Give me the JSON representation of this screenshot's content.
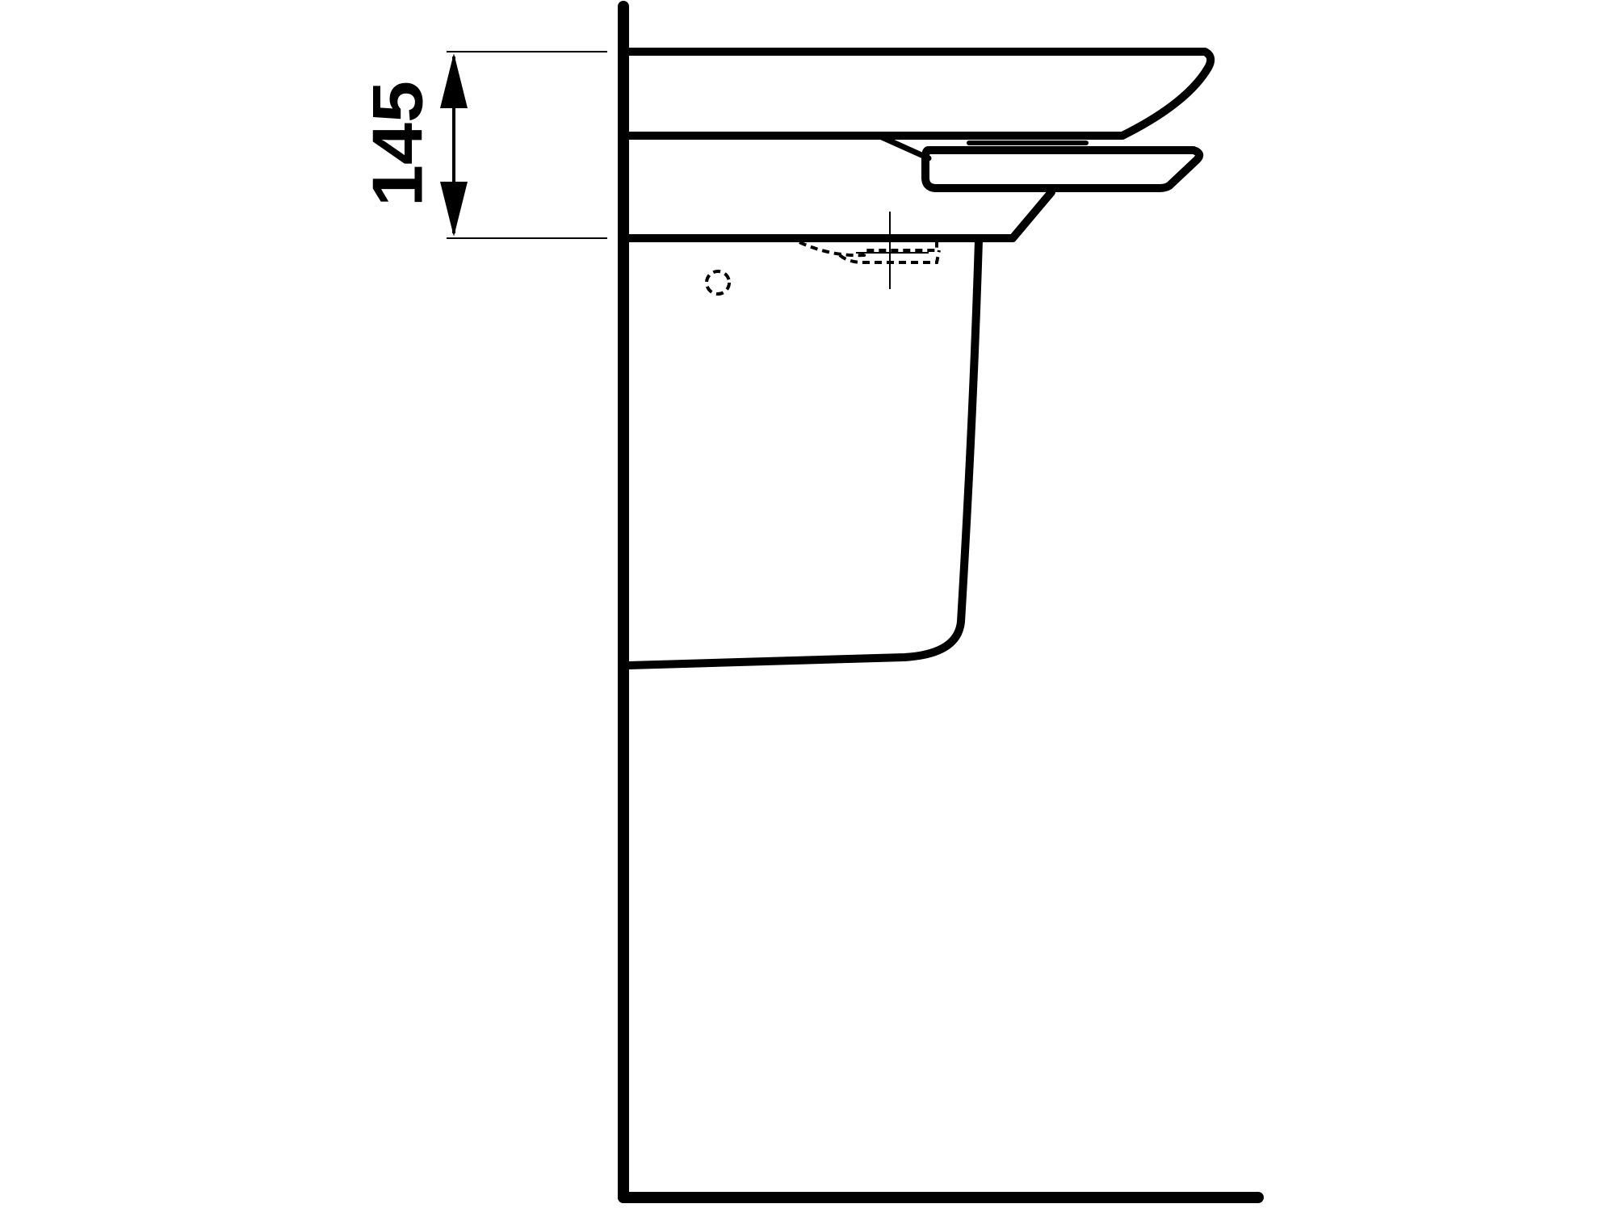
{
  "dimension": {
    "label": "145"
  },
  "colors": {
    "line": "#000000",
    "background": "#ffffff"
  }
}
